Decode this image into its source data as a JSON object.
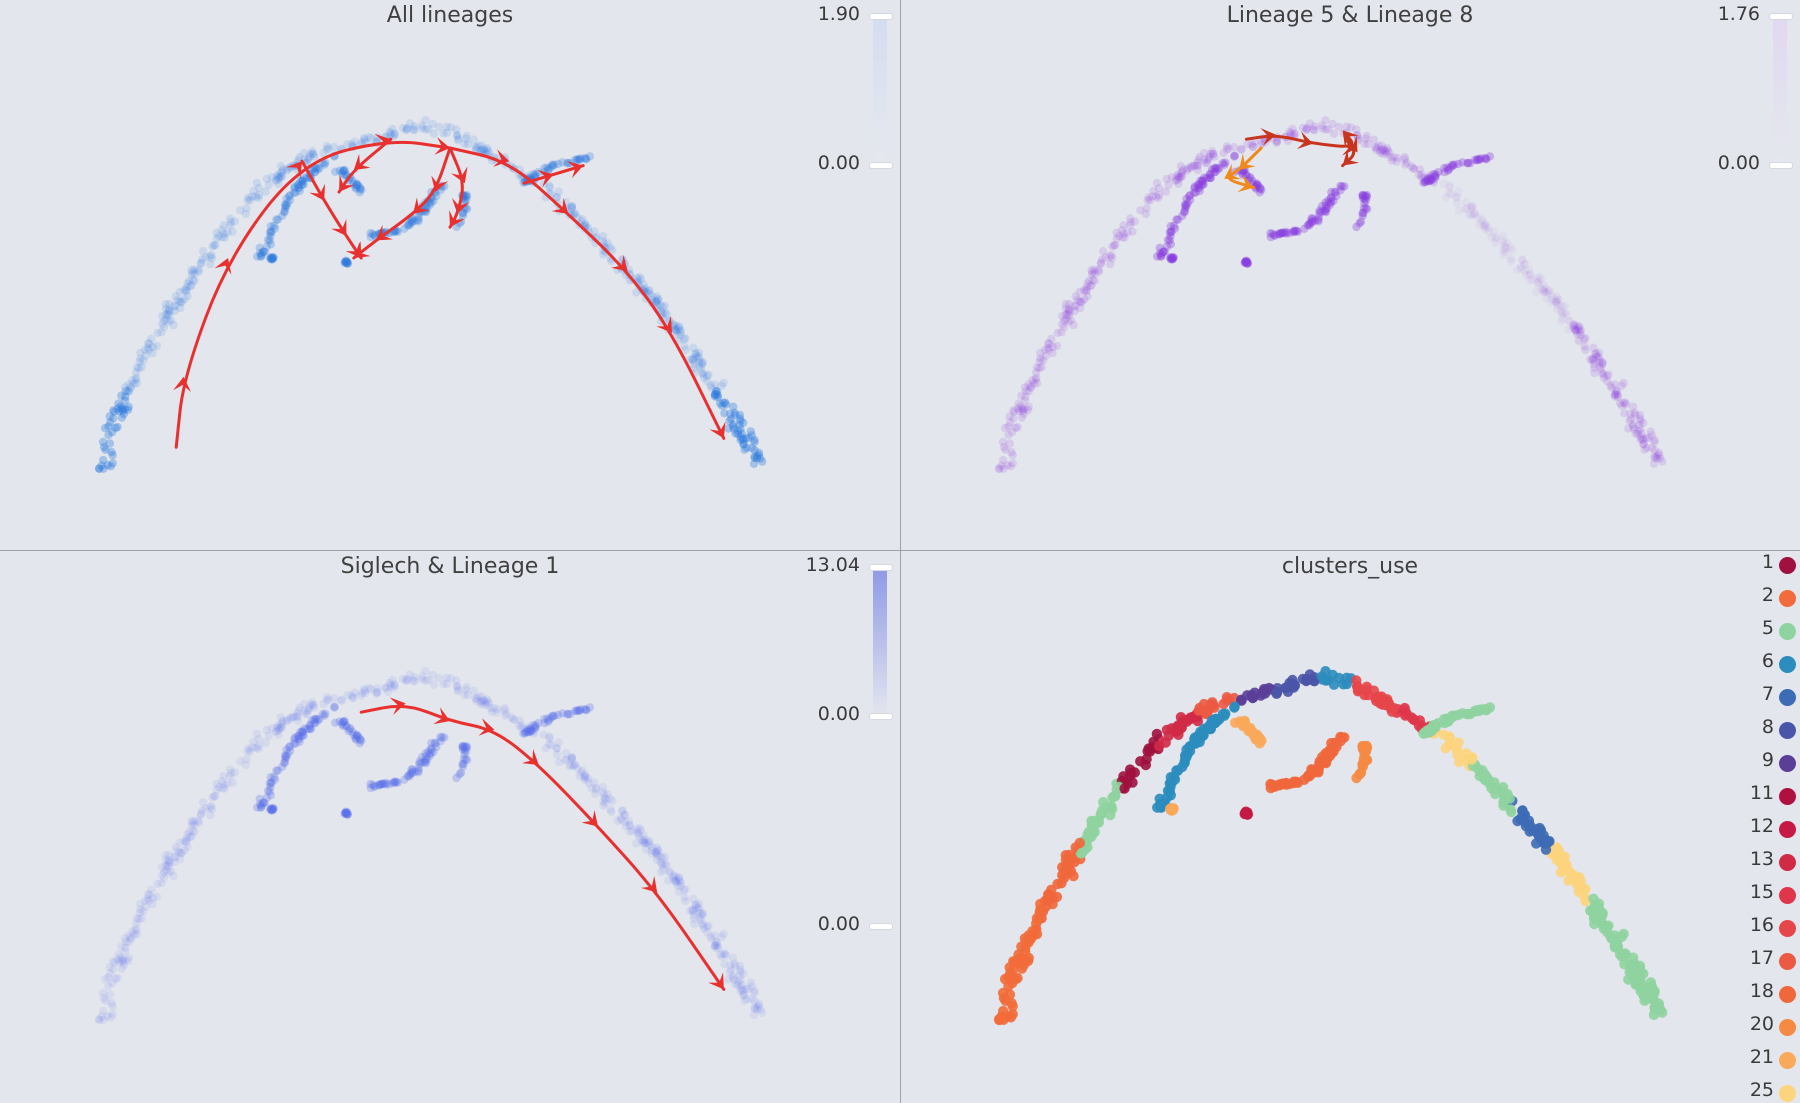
{
  "colors": {
    "blue": "#2f7ae0",
    "purple": "#8a3fe0",
    "periwinkle": "#5a6fe8",
    "arrow_red": "#e8302f",
    "arrow_orange": "#f08a1c",
    "arrow_darkred": "#c9341f"
  },
  "chart_data": [
    {
      "type": "scatter",
      "title": "All lineages",
      "point_color": "blue",
      "colorbar": {
        "max_label": "1.90",
        "min_label": "0.00",
        "max": 1.9,
        "min": 0.0
      },
      "xlim": [
        0,
        100
      ],
      "ylim": [
        0,
        100
      ],
      "trajectories": [
        {
          "color": "arrow_red",
          "points": [
            [
              13,
              12
            ],
            [
              14,
              28
            ],
            [
              20,
              55
            ],
            [
              30,
              77
            ],
            [
              42,
              82
            ],
            [
              50,
              80
            ]
          ]
        },
        {
          "color": "arrow_red",
          "points": [
            [
              30,
              77
            ],
            [
              33,
              68
            ],
            [
              36,
              60
            ],
            [
              38,
              55
            ]
          ]
        },
        {
          "color": "arrow_red",
          "points": [
            [
              42,
              82
            ],
            [
              37,
              75
            ],
            [
              35,
              70
            ]
          ]
        },
        {
          "color": "arrow_red",
          "points": [
            [
              50,
              80
            ],
            [
              52,
              72
            ],
            [
              51,
              65
            ],
            [
              50,
              62
            ]
          ]
        },
        {
          "color": "arrow_red",
          "points": [
            [
              50,
              80
            ],
            [
              48,
              70
            ],
            [
              45,
              65
            ],
            [
              40,
              59
            ],
            [
              37,
              55
            ]
          ]
        },
        {
          "color": "arrow_red",
          "points": [
            [
              50,
              80
            ],
            [
              58,
              77
            ],
            [
              66,
              65
            ],
            [
              74,
              52
            ],
            [
              80,
              38
            ],
            [
              87,
              14
            ]
          ]
        },
        {
          "color": "arrow_red",
          "points": [
            [
              60,
              72
            ],
            [
              64,
              74
            ],
            [
              68,
              76
            ]
          ]
        }
      ]
    },
    {
      "type": "scatter",
      "title": "Lineage 5 & Lineage 8",
      "point_color": "purple",
      "colorbar": {
        "max_label": "1.76",
        "min_label": "0.00",
        "max": 1.76,
        "min": 0.0
      },
      "xlim": [
        0,
        100
      ],
      "ylim": [
        0,
        100
      ],
      "trajectories": [
        {
          "color": "arrow_darkred",
          "points": [
            [
              36,
              82
            ],
            [
              40,
              83
            ],
            [
              45,
              81
            ],
            [
              51,
              80
            ],
            [
              49,
              84
            ],
            [
              51,
              79
            ],
            [
              49,
              76
            ]
          ]
        },
        {
          "color": "arrow_orange",
          "points": [
            [
              38,
              80
            ],
            [
              35,
              75
            ],
            [
              33,
              73
            ],
            [
              37,
              71
            ]
          ]
        }
      ]
    },
    {
      "type": "scatter",
      "title": "Siglech & Lineage 1",
      "point_color": "periwinkle",
      "colorbar": {
        "max_label": "13.04",
        "min_label": "0.00",
        "extra_label": "0.00",
        "max": 13.04,
        "min": 0.0
      },
      "xlim": [
        0,
        100
      ],
      "ylim": [
        0,
        100
      ],
      "trajectories": [
        {
          "color": "arrow_red",
          "points": [
            [
              38,
              77
            ],
            [
              44,
              79
            ],
            [
              50,
              75
            ],
            [
              56,
              73
            ],
            [
              62,
              65
            ],
            [
              70,
              51
            ],
            [
              78,
              36
            ],
            [
              87,
              14
            ]
          ]
        }
      ]
    },
    {
      "type": "scatter",
      "title": "clusters_use",
      "legend_placement": "right",
      "xlim": [
        0,
        100
      ],
      "ylim": [
        0,
        100
      ],
      "legend": [
        {
          "label": "1",
          "color": "#a0113f"
        },
        {
          "label": "2",
          "color": "#f26b3a"
        },
        {
          "label": "5",
          "color": "#8fd3a0"
        },
        {
          "label": "6",
          "color": "#2b8cbe"
        },
        {
          "label": "7",
          "color": "#3d6cb5"
        },
        {
          "label": "8",
          "color": "#4a55a8"
        },
        {
          "label": "9",
          "color": "#5a3e98"
        },
        {
          "label": "11",
          "color": "#b0103f"
        },
        {
          "label": "12",
          "color": "#c41a45"
        },
        {
          "label": "13",
          "color": "#d02a47"
        },
        {
          "label": "15",
          "color": "#e0364a"
        },
        {
          "label": "16",
          "color": "#e6464a"
        },
        {
          "label": "17",
          "color": "#ec5a44"
        },
        {
          "label": "18",
          "color": "#f0673c"
        },
        {
          "label": "20",
          "color": "#f58a44"
        },
        {
          "label": "21",
          "color": "#f9a95a"
        },
        {
          "label": "25",
          "color": "#fdd47e"
        }
      ]
    }
  ]
}
